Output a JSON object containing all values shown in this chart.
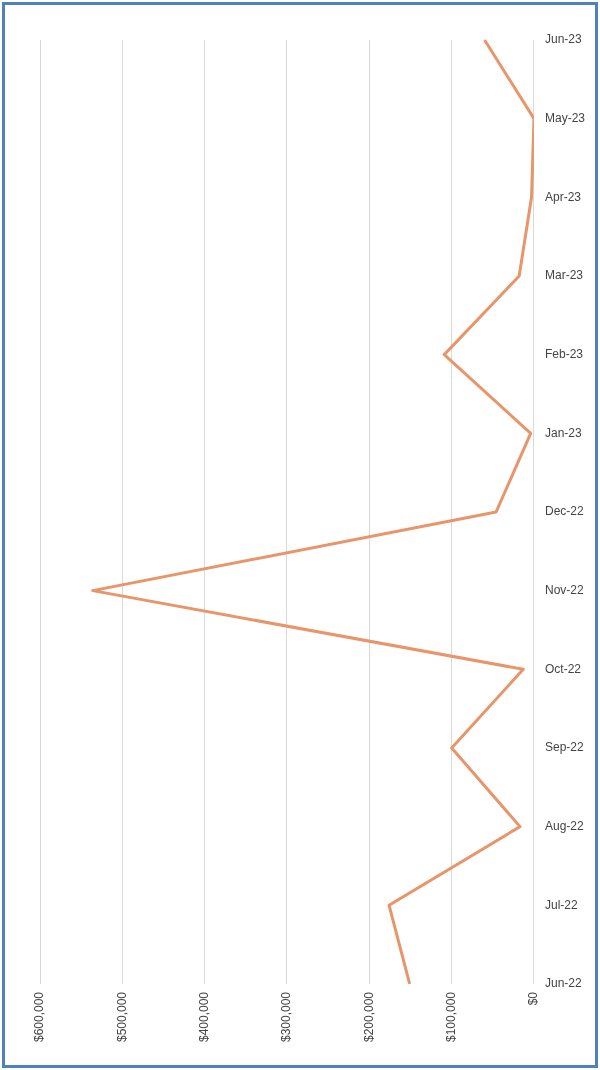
{
  "chart_data": {
    "type": "line",
    "orientation": "horizontal",
    "categories": [
      "Jun-23",
      "May-23",
      "Apr-23",
      "Mar-23",
      "Feb-23",
      "Jan-23",
      "Dec-22",
      "Nov-22",
      "Oct-22",
      "Sep-22",
      "Aug-22",
      "Jul-22",
      "Jun-22"
    ],
    "series": [
      {
        "color": "#e8956a",
        "values": [
          60000,
          0,
          3000,
          18000,
          109000,
          4000,
          46000,
          536000,
          13000,
          100000,
          17000,
          176000,
          151000
        ]
      }
    ],
    "xlim": [
      600000,
      0
    ],
    "xticks": [
      {
        "value": 600000,
        "label": "$600,000"
      },
      {
        "value": 500000,
        "label": "$500,000"
      },
      {
        "value": 400000,
        "label": "$400,000"
      },
      {
        "value": 300000,
        "label": "$300,000"
      },
      {
        "value": 200000,
        "label": "$200,000"
      },
      {
        "value": 100000,
        "label": "$100,000"
      },
      {
        "value": 0,
        "label": "$0"
      }
    ],
    "grid": "x",
    "legend": false,
    "marker": "none",
    "line_style": "solid"
  }
}
